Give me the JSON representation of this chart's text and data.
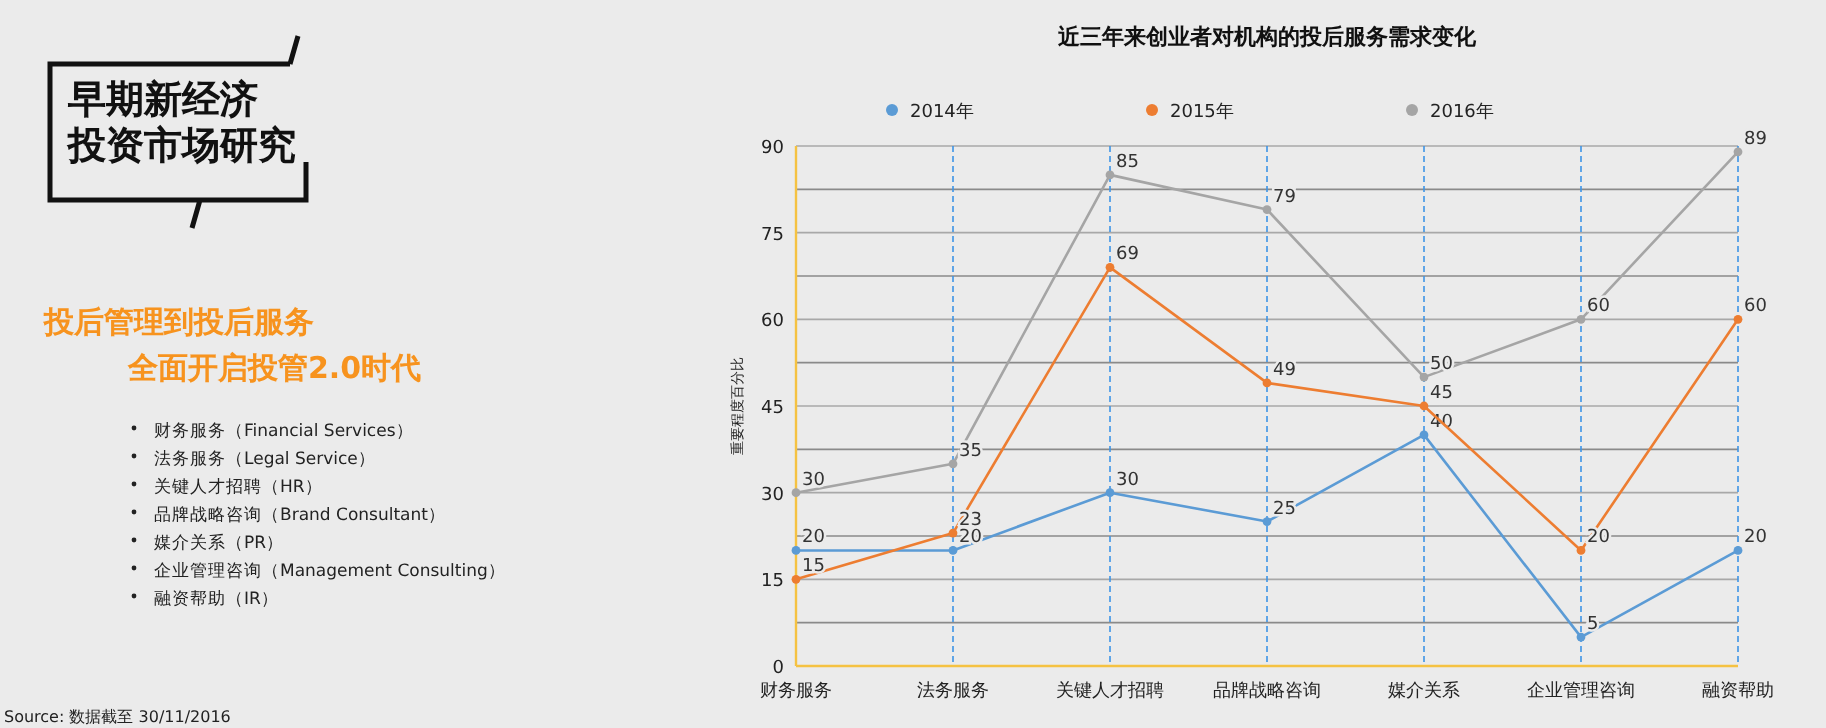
{
  "chart_data": {
    "type": "line",
    "title": "近三年来创业者对机构的投后服务需求变化",
    "ylabel": "重要程度百分比",
    "categories": [
      "财务服务",
      "法务服务",
      "关键人才招聘",
      "品牌战略咨询",
      "媒介关系",
      "企业管理咨询",
      "融资帮助"
    ],
    "series": [
      {
        "name": "2014年",
        "color": "#5b9bd5",
        "values": [
          20,
          20,
          30,
          25,
          40,
          5,
          20
        ]
      },
      {
        "name": "2015年",
        "color": "#ed7d31",
        "values": [
          15,
          23,
          69,
          49,
          45,
          20,
          60
        ]
      },
      {
        "name": "2016年",
        "color": "#a5a5a5",
        "values": [
          30,
          35,
          85,
          79,
          50,
          60,
          89
        ]
      }
    ],
    "ylim": [
      0,
      90
    ],
    "yticks": [
      0,
      {
        "value": 7.5,
        "label": null
      },
      15,
      {
        "value": 22.5,
        "label": null
      },
      30,
      {
        "value": 37.5,
        "label": null
      },
      45,
      {
        "value": 52.5,
        "label": null
      },
      60,
      {
        "value": 67.5,
        "label": null
      },
      75,
      {
        "value": 82.5,
        "label": null
      },
      90
    ],
    "grid": true,
    "legend": "top",
    "marker": "circle",
    "line_style": "solid",
    "data_labels": true,
    "annotations": [
      "早期新经济",
      "投资市场研究",
      "投后管理到投后服务",
      "全面开启投管2.0时代",
      "财务服务（Financial Services）",
      "法务服务（Legal Service）",
      "关键人才招聘（HR）",
      "品牌战略咨询（Brand Consultant）",
      "媒介关系（PR）",
      "企业管理咨询（Management Consulting）",
      "融资帮助（IR）",
      "Source: 数据截至 30/11/2016"
    ]
  }
}
